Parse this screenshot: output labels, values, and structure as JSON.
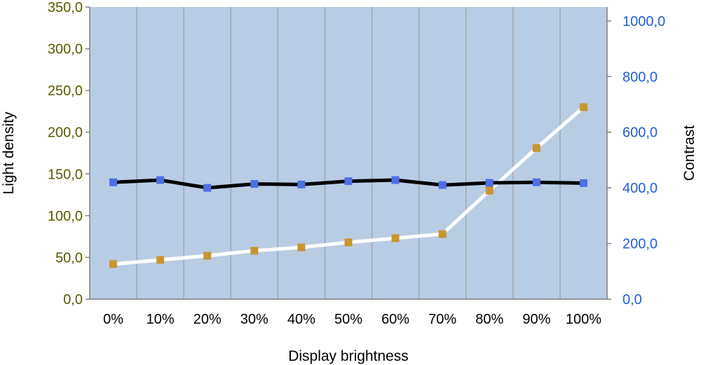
{
  "chart_data": {
    "type": "line",
    "title": "",
    "xlabel": "Display brightness",
    "ylabel_left": "Light density",
    "ylabel_right": "Contrast",
    "categories": [
      "0%",
      "10%",
      "20%",
      "30%",
      "40%",
      "50%",
      "60%",
      "70%",
      "80%",
      "90%",
      "100%"
    ],
    "y_left": {
      "min": 0,
      "max": 350,
      "step": 50,
      "tick_labels": [
        "0,0",
        "50,0",
        "100,0",
        "150,0",
        "200,0",
        "250,0",
        "300,0",
        "350,0"
      ]
    },
    "y_right": {
      "min": 0,
      "max": 1050,
      "step": 200,
      "tick_labels": [
        "0,0",
        "200,0",
        "400,0",
        "600,0",
        "800,0",
        "1000,0"
      ]
    },
    "grid": "vertical",
    "series": [
      {
        "axis": "left",
        "values": [
          42,
          47,
          52,
          58,
          62,
          68,
          73,
          78,
          130,
          181,
          230
        ],
        "line_color": "#ffffff",
        "marker_color": "#c8952e"
      },
      {
        "axis": "right",
        "values": [
          420,
          428,
          400,
          414,
          412,
          424,
          428,
          410,
          418,
          420,
          417
        ],
        "line_color": "#000000",
        "marker_color": "#4d6fe6"
      }
    ],
    "colors": {
      "plot_bg": "#b8cce4",
      "grid": "#a6a6a6",
      "left_tick": "#5a5a00",
      "right_tick": "#1f5fd6"
    }
  }
}
